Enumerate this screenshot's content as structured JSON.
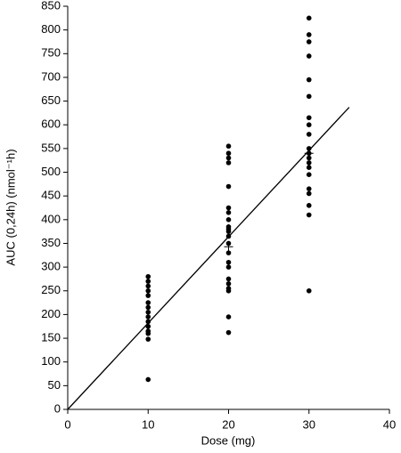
{
  "chart_data": {
    "type": "scatter",
    "x_label": "Dose (mg)",
    "y_label": "AUC (0,24h) (nmol⁻¹h)",
    "xlim": [
      0,
      40
    ],
    "xticks": [
      0,
      10,
      20,
      30,
      40
    ],
    "ylim": [
      0,
      850
    ],
    "yticks": [
      0,
      50,
      100,
      150,
      200,
      250,
      300,
      350,
      400,
      450,
      500,
      550,
      600,
      650,
      700,
      750,
      800,
      850
    ],
    "grid": false,
    "series": [
      {
        "color": "#000000",
        "marker": "circle",
        "x": [
          10,
          10,
          10,
          10,
          10,
          10,
          10,
          10,
          10,
          10,
          10,
          10,
          10,
          10,
          10,
          20,
          20,
          20,
          20,
          20,
          20,
          20,
          20,
          20,
          20,
          20,
          20,
          20,
          20,
          20,
          20,
          20,
          20,
          20,
          20,
          20,
          20,
          30,
          30,
          30,
          30,
          30,
          30,
          30,
          30,
          30,
          30,
          30,
          30,
          30,
          30,
          30,
          30,
          30,
          30,
          30,
          30
        ],
        "y": [
          280,
          270,
          260,
          250,
          240,
          225,
          215,
          205,
          195,
          185,
          175,
          165,
          160,
          148,
          63,
          555,
          540,
          530,
          520,
          470,
          425,
          415,
          400,
          385,
          380,
          375,
          365,
          350,
          330,
          310,
          300,
          275,
          265,
          255,
          250,
          195,
          162,
          825,
          790,
          775,
          745,
          695,
          660,
          615,
          600,
          580,
          550,
          540,
          530,
          520,
          510,
          495,
          465,
          455,
          430,
          410,
          250
        ]
      },
      {
        "color": "#000000",
        "marker": "plus",
        "x": [
          20,
          30
        ],
        "y": [
          343,
          540
        ]
      },
      {
        "color": "#000000",
        "marker": "line",
        "x": [
          0,
          35
        ],
        "y": [
          0,
          637
        ]
      }
    ]
  }
}
